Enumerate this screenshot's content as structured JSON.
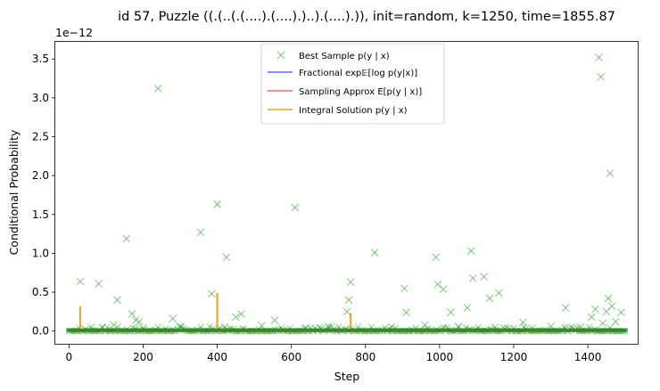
{
  "chart_data": {
    "type": "scatter",
    "title": "id 57, Puzzle ((.(..(.(....).(....).)..).(....).)), init=random, k=1250, time=1855.87",
    "xlabel": "Step",
    "ylabel": "Conditional Probability",
    "offset_text": "1e−12",
    "xlim": [
      -37,
      1537
    ],
    "ylim": [
      -0.175,
      3.72
    ],
    "x_ticks": [
      0,
      200,
      400,
      600,
      800,
      1000,
      1200,
      1400
    ],
    "y_ticks": [
      0.0,
      0.5,
      1.0,
      1.5,
      2.0,
      2.5,
      3.0,
      3.5
    ],
    "x_tick_labels": [
      "0",
      "200",
      "400",
      "600",
      "800",
      "1000",
      "1200",
      "1400"
    ],
    "y_tick_labels": [
      "0.0",
      "0.5",
      "1.0",
      "1.5",
      "2.0",
      "2.5",
      "3.0",
      "3.5"
    ],
    "grid": false,
    "legend_position": "top-center",
    "colors": {
      "best_sample": "#2ca02c",
      "fractional": "#4040ff",
      "sampling": "#ff4040",
      "integral": "#f0a020"
    },
    "legend": [
      {
        "label": "Best Sample p(y | x)",
        "kind": "marker",
        "color": "#2ca02c"
      },
      {
        "label": "Fractional exp𝔼[log p(y|x)]",
        "kind": "line",
        "color": "#4040ff"
      },
      {
        "label": "Sampling Approx E[p(y | x)]",
        "kind": "line",
        "color": "#ff4040"
      },
      {
        "label": "Integral Solution p(y | x)",
        "kind": "line",
        "color": "#f0a020"
      }
    ],
    "series": [
      {
        "name": "Best Sample p(y | x)",
        "marker": "x",
        "points": [
          [
            30,
            0.64
          ],
          [
            80,
            0.61
          ],
          [
            130,
            0.4
          ],
          [
            155,
            1.19
          ],
          [
            170,
            0.22
          ],
          [
            180,
            0.14
          ],
          [
            190,
            0.12
          ],
          [
            240,
            3.12
          ],
          [
            280,
            0.16
          ],
          [
            355,
            1.27
          ],
          [
            385,
            0.48
          ],
          [
            400,
            1.63
          ],
          [
            425,
            0.95
          ],
          [
            450,
            0.18
          ],
          [
            465,
            0.22
          ],
          [
            555,
            0.14
          ],
          [
            610,
            1.59
          ],
          [
            750,
            0.25
          ],
          [
            755,
            0.4
          ],
          [
            760,
            0.63
          ],
          [
            825,
            1.01
          ],
          [
            905,
            0.55
          ],
          [
            910,
            0.24
          ],
          [
            990,
            0.95
          ],
          [
            995,
            0.6
          ],
          [
            1010,
            0.54
          ],
          [
            1030,
            0.24
          ],
          [
            1075,
            0.3
          ],
          [
            1085,
            1.03
          ],
          [
            1090,
            0.68
          ],
          [
            1120,
            0.7
          ],
          [
            1135,
            0.42
          ],
          [
            1160,
            0.49
          ],
          [
            1225,
            0.11
          ],
          [
            1340,
            0.3
          ],
          [
            1420,
            0.28
          ],
          [
            1430,
            3.52
          ],
          [
            1435,
            3.27
          ],
          [
            1450,
            0.25
          ],
          [
            1455,
            0.42
          ],
          [
            1460,
            2.03
          ],
          [
            1465,
            0.32
          ],
          [
            1490,
            0.24
          ],
          [
            60,
            0.05
          ],
          [
            120,
            0.08
          ],
          [
            200,
            0.04
          ],
          [
            300,
            0.06
          ],
          [
            420,
            0.05
          ],
          [
            520,
            0.07
          ],
          [
            640,
            0.04
          ],
          [
            700,
            0.06
          ],
          [
            870,
            0.05
          ],
          [
            960,
            0.08
          ],
          [
            1050,
            0.06
          ],
          [
            1150,
            0.05
          ],
          [
            1250,
            0.04
          ],
          [
            1300,
            0.06
          ],
          [
            1380,
            0.05
          ],
          [
            1410,
            0.18
          ],
          [
            1440,
            0.1
          ],
          [
            1475,
            0.12
          ]
        ]
      },
      {
        "name": "Integral Solution p(y | x)",
        "spikes": [
          [
            30,
            0.32
          ],
          [
            400,
            0.49
          ],
          [
            760,
            0.23
          ]
        ]
      }
    ]
  }
}
